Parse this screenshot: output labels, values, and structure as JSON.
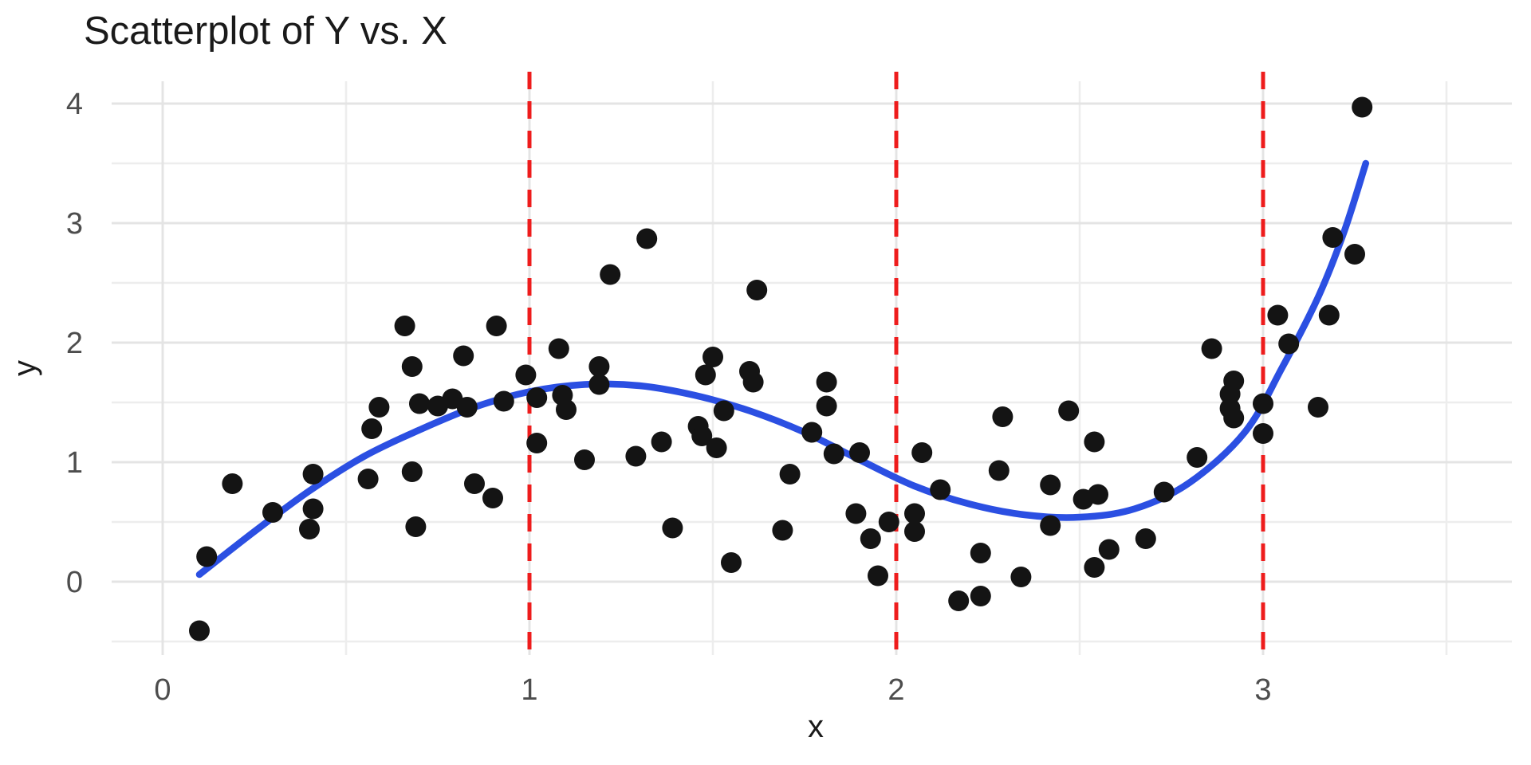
{
  "chart_data": {
    "type": "scatter",
    "title": "Scatterplot of Y vs. X",
    "xlabel": "x",
    "ylabel": "y",
    "xlim": [
      -0.14,
      3.68
    ],
    "ylim": [
      -0.61,
      4.19
    ],
    "grid": true,
    "legend_position": "none",
    "x_major_ticks": [
      0,
      1,
      2,
      3
    ],
    "x_minor_ticks": [
      0.5,
      1.5,
      2.5,
      3.5
    ],
    "y_major_ticks": [
      0,
      1,
      2,
      3,
      4
    ],
    "y_minor_ticks": [
      -0.5,
      0.5,
      1.5,
      2.5,
      3.5
    ],
    "vlines": {
      "x": [
        1,
        2,
        3
      ],
      "style": "dashed"
    },
    "points": [
      [
        0.1,
        -0.41
      ],
      [
        0.12,
        0.21
      ],
      [
        0.19,
        0.82
      ],
      [
        0.3,
        0.58
      ],
      [
        0.4,
        0.44
      ],
      [
        0.41,
        0.61
      ],
      [
        0.41,
        0.9
      ],
      [
        0.56,
        0.86
      ],
      [
        0.57,
        1.28
      ],
      [
        0.59,
        1.46
      ],
      [
        0.66,
        2.14
      ],
      [
        0.68,
        1.8
      ],
      [
        0.68,
        0.92
      ],
      [
        0.69,
        0.46
      ],
      [
        0.7,
        1.49
      ],
      [
        0.75,
        1.47
      ],
      [
        0.79,
        1.53
      ],
      [
        0.83,
        1.46
      ],
      [
        0.82,
        1.89
      ],
      [
        0.85,
        0.82
      ],
      [
        0.9,
        0.7
      ],
      [
        0.91,
        2.14
      ],
      [
        0.93,
        1.51
      ],
      [
        0.99,
        1.73
      ],
      [
        1.02,
        1.54
      ],
      [
        1.02,
        1.16
      ],
      [
        1.08,
        1.95
      ],
      [
        1.09,
        1.56
      ],
      [
        1.1,
        1.44
      ],
      [
        1.15,
        1.02
      ],
      [
        1.19,
        1.8
      ],
      [
        1.19,
        1.65
      ],
      [
        1.22,
        2.57
      ],
      [
        1.29,
        1.05
      ],
      [
        1.32,
        2.87
      ],
      [
        1.36,
        1.17
      ],
      [
        1.39,
        0.45
      ],
      [
        1.46,
        1.3
      ],
      [
        1.47,
        1.22
      ],
      [
        1.48,
        1.73
      ],
      [
        1.5,
        1.88
      ],
      [
        1.51,
        1.12
      ],
      [
        1.53,
        1.43
      ],
      [
        1.55,
        0.16
      ],
      [
        1.6,
        1.76
      ],
      [
        1.61,
        1.67
      ],
      [
        1.62,
        2.44
      ],
      [
        1.69,
        0.43
      ],
      [
        1.71,
        0.9
      ],
      [
        1.77,
        1.25
      ],
      [
        1.81,
        1.67
      ],
      [
        1.81,
        1.47
      ],
      [
        1.83,
        1.07
      ],
      [
        1.89,
        0.57
      ],
      [
        1.9,
        1.08
      ],
      [
        1.93,
        0.36
      ],
      [
        1.95,
        0.05
      ],
      [
        1.98,
        0.5
      ],
      [
        2.05,
        0.57
      ],
      [
        2.05,
        0.42
      ],
      [
        2.07,
        1.08
      ],
      [
        2.12,
        0.77
      ],
      [
        2.17,
        -0.16
      ],
      [
        2.23,
        -0.12
      ],
      [
        2.23,
        0.24
      ],
      [
        2.28,
        0.93
      ],
      [
        2.29,
        1.38
      ],
      [
        2.34,
        0.04
      ],
      [
        2.42,
        0.81
      ],
      [
        2.42,
        0.47
      ],
      [
        2.47,
        1.43
      ],
      [
        2.51,
        0.69
      ],
      [
        2.54,
        1.17
      ],
      [
        2.54,
        0.12
      ],
      [
        2.55,
        0.73
      ],
      [
        2.58,
        0.27
      ],
      [
        2.68,
        0.36
      ],
      [
        2.73,
        0.75
      ],
      [
        2.82,
        1.04
      ],
      [
        2.86,
        1.95
      ],
      [
        2.91,
        1.57
      ],
      [
        2.91,
        1.45
      ],
      [
        2.92,
        1.68
      ],
      [
        2.92,
        1.37
      ],
      [
        3.0,
        1.49
      ],
      [
        3.0,
        1.24
      ],
      [
        3.04,
        2.23
      ],
      [
        3.07,
        1.99
      ],
      [
        3.15,
        1.46
      ],
      [
        3.18,
        2.23
      ],
      [
        3.19,
        2.88
      ],
      [
        3.25,
        2.74
      ],
      [
        3.27,
        3.97
      ]
    ],
    "smooth_line": [
      [
        0.1,
        0.06
      ],
      [
        0.25,
        0.42
      ],
      [
        0.4,
        0.76
      ],
      [
        0.55,
        1.05
      ],
      [
        0.7,
        1.27
      ],
      [
        0.85,
        1.46
      ],
      [
        1.0,
        1.59
      ],
      [
        1.15,
        1.65
      ],
      [
        1.3,
        1.64
      ],
      [
        1.45,
        1.56
      ],
      [
        1.6,
        1.43
      ],
      [
        1.75,
        1.25
      ],
      [
        1.9,
        1.02
      ],
      [
        2.05,
        0.8
      ],
      [
        2.2,
        0.65
      ],
      [
        2.35,
        0.56
      ],
      [
        2.5,
        0.54
      ],
      [
        2.65,
        0.61
      ],
      [
        2.8,
        0.83
      ],
      [
        2.95,
        1.25
      ],
      [
        3.05,
        1.78
      ],
      [
        3.15,
        2.38
      ],
      [
        3.22,
        2.92
      ],
      [
        3.28,
        3.5
      ]
    ],
    "colors": {
      "point": "#141414",
      "smooth_line": "#2B4FE2",
      "vline": "#EE1C1C",
      "grid_major": "#E4E4E4",
      "grid_minor": "#EDEDED",
      "title_text": "#1A1A1A",
      "tick_text": "#4D4D4D",
      "background": "#FFFFFF"
    }
  }
}
